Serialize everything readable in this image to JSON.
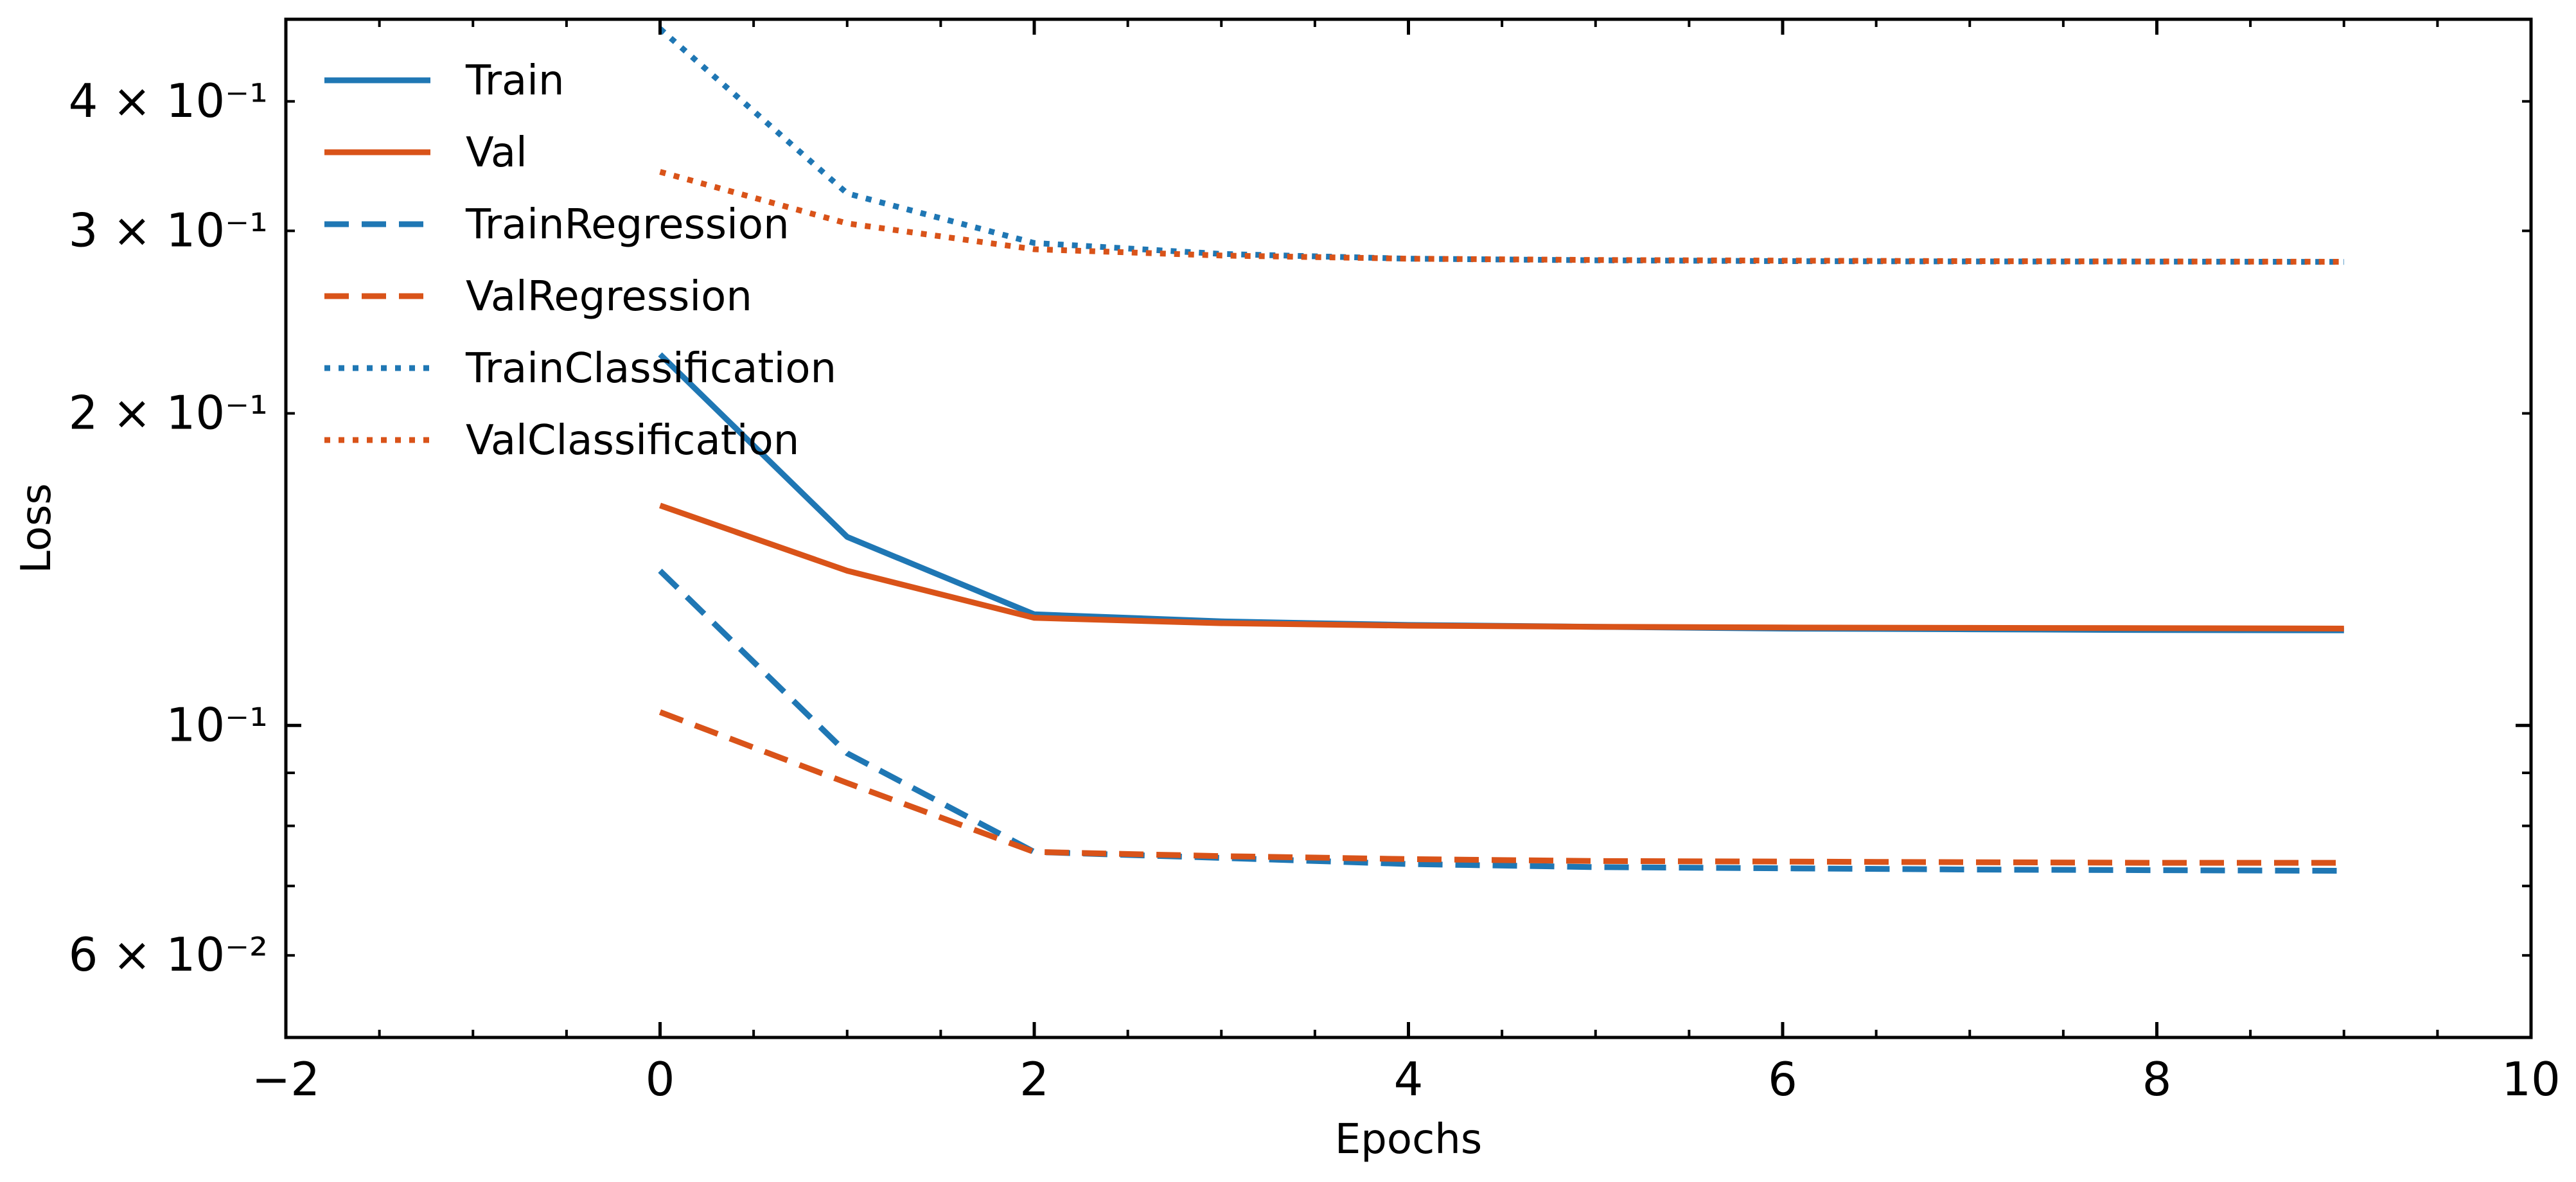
{
  "chart_data": {
    "type": "line",
    "title": "",
    "xlabel": "Epochs",
    "ylabel": "Loss",
    "xlim": [
      -2,
      10
    ],
    "ylim": [
      0.05,
      0.48
    ],
    "yscale": "log",
    "grid": false,
    "legend_position": "top-left",
    "x_ticks": [
      -2,
      0,
      2,
      4,
      6,
      8,
      10
    ],
    "x_tick_labels": [
      "−2",
      "0",
      "2",
      "4",
      "6",
      "8",
      "10"
    ],
    "y_major_ticks": [
      {
        "value": 0.1,
        "label": "10⁻¹"
      }
    ],
    "y_minor_labeled_ticks": [
      {
        "value": 0.06,
        "label": "6 × 10⁻²"
      },
      {
        "value": 0.2,
        "label": "2 × 10⁻¹"
      },
      {
        "value": 0.3,
        "label": "3 × 10⁻¹"
      },
      {
        "value": 0.4,
        "label": "4 × 10⁻¹"
      }
    ],
    "y_minor_unlabeled_ticks": [
      0.07,
      0.08,
      0.09
    ],
    "x": [
      0,
      1,
      2,
      3,
      4,
      5,
      6,
      7,
      8,
      9
    ],
    "series": [
      {
        "name": "Train",
        "color": "#1f77b4",
        "style": "solid",
        "values": [
          0.228,
          0.152,
          0.128,
          0.126,
          0.125,
          0.1245,
          0.124,
          0.1238,
          0.1236,
          0.1235
        ]
      },
      {
        "name": "Val",
        "color": "#d95319",
        "style": "solid",
        "values": [
          0.163,
          0.141,
          0.127,
          0.1255,
          0.1248,
          0.1245,
          0.1243,
          0.1242,
          0.1241,
          0.124
        ]
      },
      {
        "name": "TrainRegression",
        "color": "#1f77b4",
        "style": "dashed",
        "values": [
          0.141,
          0.094,
          0.0755,
          0.0745,
          0.0735,
          0.073,
          0.0728,
          0.0726,
          0.0725,
          0.0724
        ]
      },
      {
        "name": "ValRegression",
        "color": "#d95319",
        "style": "dashed",
        "values": [
          0.103,
          0.088,
          0.0755,
          0.0748,
          0.0743,
          0.074,
          0.0739,
          0.0738,
          0.0737,
          0.0737
        ]
      },
      {
        "name": "TrainClassification",
        "color": "#1f77b4",
        "style": "dotted",
        "values": [
          0.47,
          0.326,
          0.292,
          0.285,
          0.282,
          0.281,
          0.2805,
          0.2803,
          0.2802,
          0.28
        ]
      },
      {
        "name": "ValClassification",
        "color": "#d95319",
        "style": "dotted",
        "values": [
          0.342,
          0.305,
          0.288,
          0.284,
          0.282,
          0.2812,
          0.2808,
          0.2805,
          0.2803,
          0.2801
        ]
      }
    ]
  }
}
